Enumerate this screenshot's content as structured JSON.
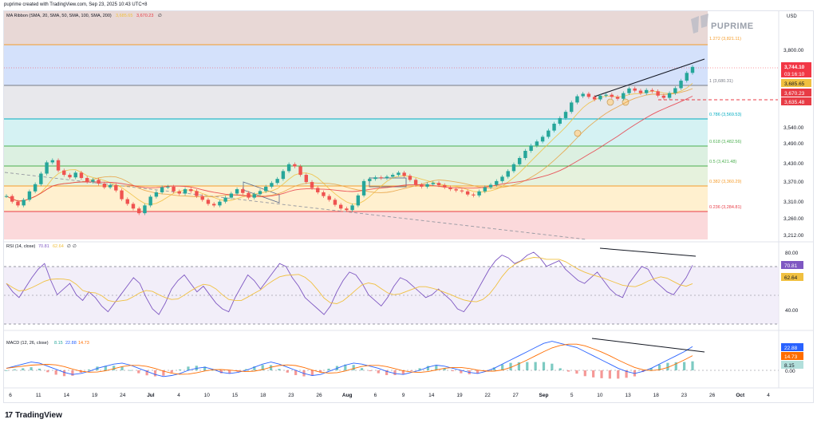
{
  "header": {
    "caption": "puprime created with TradingView.com, Sep 23, 2025 10:43 UTC+8"
  },
  "brand": {
    "watermark": "PUPRIME",
    "footer_logo_mark": "17",
    "footer_logo_text": "TradingView"
  },
  "main_pane": {
    "indicator_title": "MA Ribbon (SMA, 20, SMA, 50, SMA, 100, SMA, 200)",
    "indicator_values": [
      "3,685.65",
      "3,670.23"
    ],
    "indicator_value_colors": [
      "#f0c040",
      "#e83b45"
    ],
    "currency": "USD",
    "price_ticks": [
      "3,800.00",
      "3,540.00",
      "3,490.00",
      "3,430.00",
      "3,370.00",
      "3,310.00",
      "3,260.00",
      "3,212.00"
    ],
    "fib_levels": [
      {
        "label": "1.272 (3,821.11)",
        "color": "#f59c2b"
      },
      {
        "label": "1 (3,680.31)",
        "color": "#787b86"
      },
      {
        "label": "0.786 (3,569.53)",
        "color": "#00acc1"
      },
      {
        "label": "0.618 (3,482.56)",
        "color": "#4caf50"
      },
      {
        "label": "0.5 (3,421.48)",
        "color": "#4caf50"
      },
      {
        "label": "0.382 (3,360.29)",
        "color": "#f59c2b"
      },
      {
        "label": "0.236 (3,284.81)",
        "color": "#e83b45"
      }
    ],
    "price_tags": [
      {
        "text": "3,744.10",
        "bg": "#f23645",
        "fg": "#ffffff"
      },
      {
        "text": "03:16:10",
        "bg": "#f23645",
        "fg": "#ffffff"
      },
      {
        "text": "3,685.65",
        "bg": "#f0c040",
        "fg": "#131722"
      },
      {
        "text": "3,670.23",
        "bg": "#e83b45",
        "fg": "#ffffff"
      },
      {
        "text": "3,635.48",
        "bg": "#e83b45",
        "fg": "#ffffff"
      }
    ]
  },
  "rsi_pane": {
    "title": "RSI (14, close)",
    "values": [
      "70.81",
      "62.64",
      "∅",
      "∅"
    ],
    "value_colors": [
      "#7e57c2",
      "#f0c040",
      "#131722",
      "#131722"
    ],
    "ticks": [
      "80.00",
      "40.00"
    ],
    "tags": [
      {
        "text": "70.81",
        "bg": "#7e57c2",
        "fg": "#ffffff"
      },
      {
        "text": "62.64",
        "bg": "#f0c040",
        "fg": "#131722"
      }
    ]
  },
  "macd_pane": {
    "title": "MACD (12, 26, close)",
    "values": [
      "8.15",
      "22.88",
      "14.73"
    ],
    "value_colors": [
      "#26a69a",
      "#2962ff",
      "#ff6d00"
    ],
    "ticks": [
      "0.00"
    ],
    "tags": [
      {
        "text": "22.88",
        "bg": "#2962ff",
        "fg": "#ffffff"
      },
      {
        "text": "14.73",
        "bg": "#ff6d00",
        "fg": "#ffffff"
      },
      {
        "text": "8.15",
        "bg": "#b2dfdb",
        "fg": "#131722"
      }
    ]
  },
  "time_axis": {
    "labels": [
      "6",
      "11",
      "14",
      "19",
      "24",
      "Jul",
      "4",
      "10",
      "15",
      "18",
      "23",
      "26",
      "Aug",
      "6",
      "9",
      "14",
      "19",
      "22",
      "27",
      "Sep",
      "5",
      "10",
      "13",
      "18",
      "23",
      "26",
      "Oct",
      "4"
    ],
    "bold": [
      "Jul",
      "Aug",
      "Sep",
      "Oct"
    ]
  },
  "chart_data": {
    "type": "candlestick",
    "symbol_quote": "USD",
    "y_ticks": [
      3212,
      3260,
      3310,
      3370,
      3430,
      3490,
      3540,
      3800
    ],
    "fib_retracement": [
      {
        "ratio": 1.272,
        "price": 3821.11
      },
      {
        "ratio": 1,
        "price": 3680.31
      },
      {
        "ratio": 0.786,
        "price": 3569.53
      },
      {
        "ratio": 0.618,
        "price": 3482.56
      },
      {
        "ratio": 0.5,
        "price": 3421.48
      },
      {
        "ratio": 0.382,
        "price": 3360.29
      },
      {
        "ratio": 0.236,
        "price": 3284.81
      }
    ],
    "last_price": 3744.1,
    "countdown": "03:16:10",
    "sma_values": [
      3685.65,
      3670.23
    ],
    "horizontal_level": 3635.48,
    "closes": [
      3330,
      3312,
      3300,
      3318,
      3345,
      3368,
      3402,
      3438,
      3445,
      3412,
      3398,
      3390,
      3405,
      3388,
      3376,
      3382,
      3370,
      3358,
      3365,
      3348,
      3320,
      3305,
      3290,
      3275,
      3300,
      3328,
      3342,
      3358,
      3360,
      3345,
      3338,
      3352,
      3346,
      3330,
      3318,
      3305,
      3300,
      3312,
      3325,
      3338,
      3352,
      3340,
      3325,
      3336,
      3346,
      3360,
      3372,
      3385,
      3410,
      3432,
      3425,
      3398,
      3375,
      3356,
      3342,
      3330,
      3318,
      3302,
      3290,
      3285,
      3300,
      3332,
      3378,
      3385,
      3390,
      3388,
      3392,
      3398,
      3405,
      3395,
      3382,
      3366,
      3360,
      3368,
      3372,
      3365,
      3358,
      3352,
      3348,
      3345,
      3335,
      3332,
      3345,
      3358,
      3366,
      3378,
      3392,
      3410,
      3432,
      3452,
      3475,
      3492,
      3505,
      3520,
      3540,
      3562,
      3580,
      3600,
      3630,
      3650,
      3658,
      3648,
      3640,
      3652,
      3655,
      3648,
      3642,
      3660,
      3675,
      3668,
      3660,
      3670,
      3666,
      3652,
      3645,
      3660,
      3676,
      3700,
      3725,
      3744.1
    ],
    "rsi": {
      "last": 70.81,
      "signal": 62.64,
      "series": [
        58,
        52,
        48,
        55,
        62,
        68,
        72,
        60,
        50,
        54,
        58,
        50,
        46,
        52,
        48,
        42,
        38,
        44,
        50,
        56,
        62,
        58,
        48,
        40,
        36,
        44,
        54,
        60,
        64,
        58,
        52,
        56,
        50,
        44,
        40,
        38,
        48,
        56,
        64,
        60,
        54,
        60,
        66,
        72,
        70,
        62,
        56,
        48,
        44,
        40,
        36,
        42,
        52,
        60,
        66,
        64,
        58,
        50,
        46,
        42,
        48,
        56,
        62,
        60,
        56,
        52,
        48,
        50,
        54,
        50,
        46,
        40,
        38,
        44,
        52,
        60,
        68,
        74,
        78,
        76,
        72,
        74,
        78,
        80,
        76,
        70,
        72,
        74,
        68,
        64,
        60,
        58,
        62,
        66,
        60,
        54,
        50,
        48,
        58,
        64,
        70,
        68,
        60,
        56,
        52,
        50,
        56,
        62,
        70.81
      ]
    },
    "macd": {
      "macd": 22.88,
      "signal": 14.73,
      "histogram": 8.15,
      "series": [
        2,
        4,
        6,
        8,
        7,
        4,
        1,
        -2,
        -4,
        -3,
        -1,
        2,
        4,
        6,
        7,
        5,
        2,
        -1,
        -4,
        -6,
        -5,
        -3,
        0,
        2,
        3,
        1,
        -2,
        -3,
        -2,
        0,
        3,
        6,
        8,
        6,
        3,
        0,
        -3,
        -5,
        -4,
        -1,
        2,
        5,
        7,
        6,
        4,
        2,
        -1,
        -3,
        -4,
        -2,
        0,
        3,
        5,
        4,
        2,
        0,
        -2,
        -3,
        -1,
        2,
        6,
        10,
        14,
        18,
        22,
        26,
        28,
        26,
        24,
        22,
        18,
        14,
        10,
        6,
        2,
        -1,
        -3,
        -1,
        2,
        6,
        10,
        14,
        18,
        22.88
      ]
    }
  }
}
